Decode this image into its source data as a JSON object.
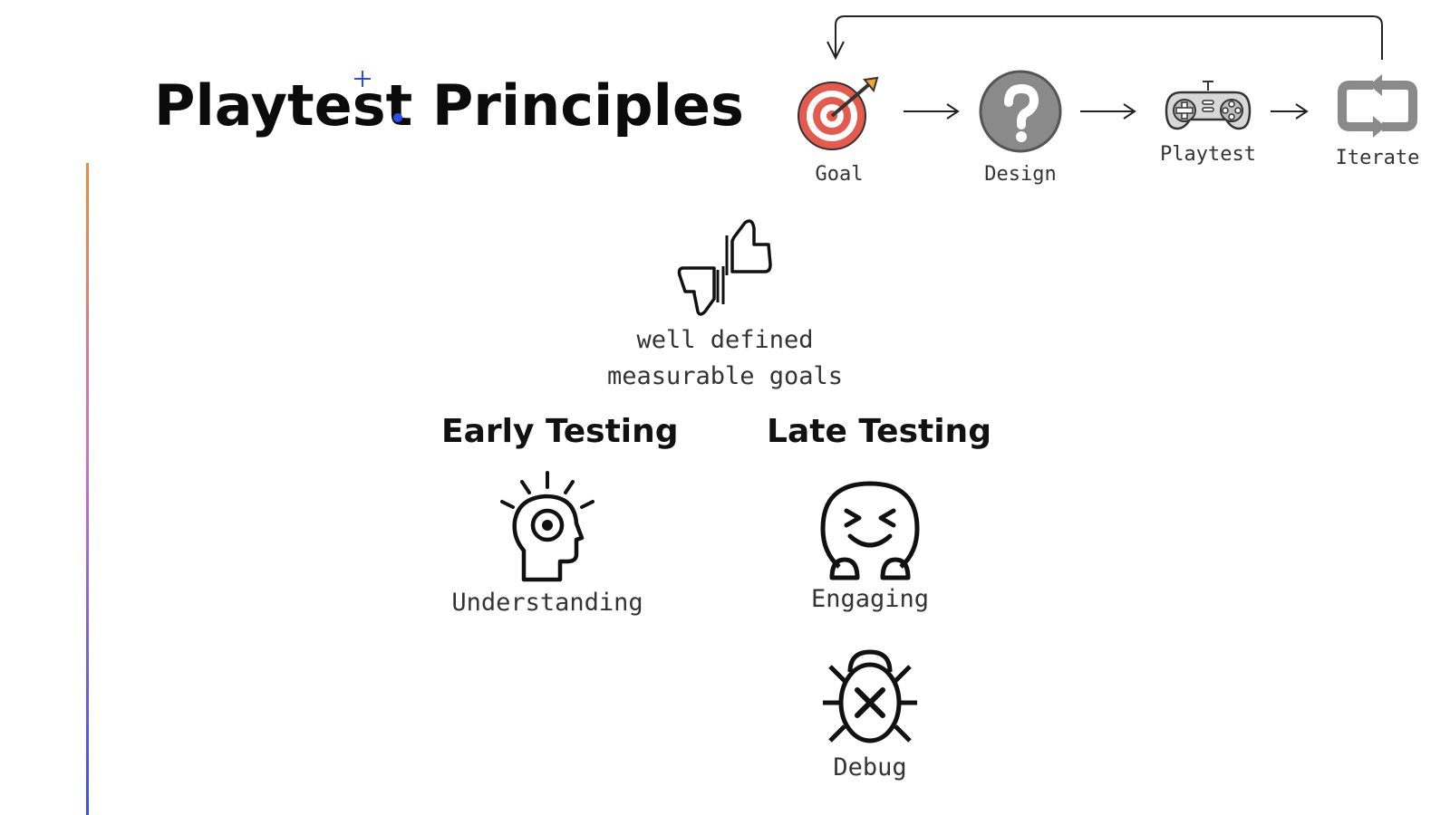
{
  "title": "Playtest Principles",
  "process": {
    "steps": [
      {
        "label": "Goal",
        "icon": "target-icon"
      },
      {
        "label": "Design",
        "icon": "question-icon"
      },
      {
        "label": "Playtest",
        "icon": "gamepad-icon"
      },
      {
        "label": "Iterate",
        "icon": "repeat-icon"
      }
    ]
  },
  "goal_note": {
    "icon": "thumbs-up-down-icon",
    "line1": "well defined",
    "line2": "measurable goals"
  },
  "early": {
    "heading": "Early Testing",
    "items": [
      {
        "label": "Understanding",
        "icon": "head-idea-icon"
      }
    ]
  },
  "late": {
    "heading": "Late Testing",
    "items": [
      {
        "label": "Engaging",
        "icon": "laughing-face-icon"
      },
      {
        "label": "Debug",
        "icon": "bug-icon"
      }
    ]
  },
  "colors": {
    "rule_top": "#ef8a3c",
    "rule_bottom": "#3a4ff2",
    "cursor": "#2b4df0",
    "target_red": "#e55a4c",
    "icon_gray": "#8a8a8a"
  }
}
